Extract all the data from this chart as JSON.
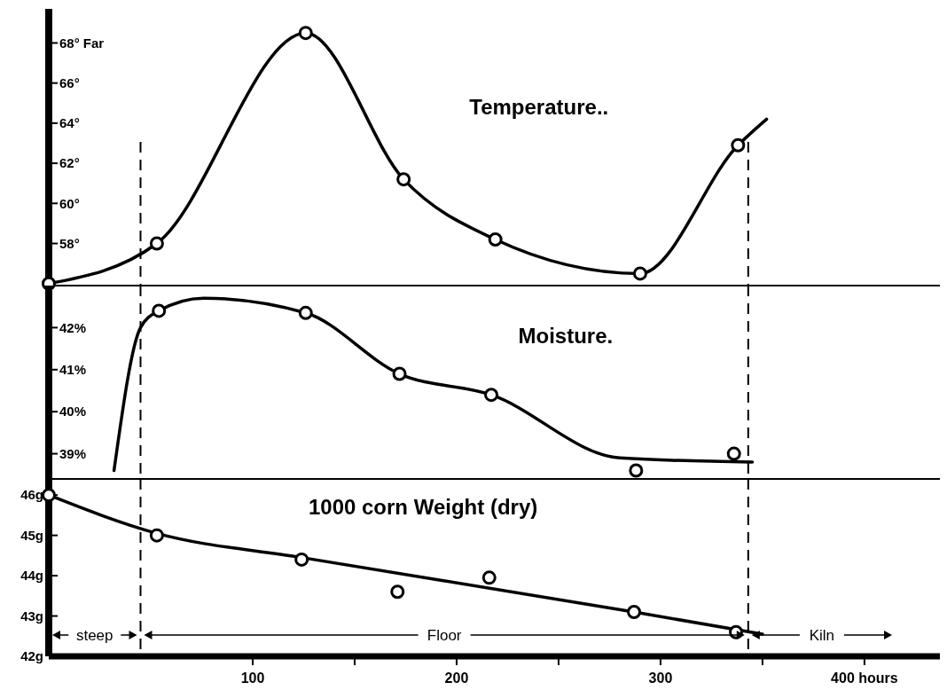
{
  "chart_data": [
    {
      "type": "line",
      "title": "Temperature..",
      "xlim": [
        0,
        437
      ],
      "ylim": [
        55.9,
        69.7
      ],
      "yticks": [
        {
          "value": 58,
          "label": "58°"
        },
        {
          "value": 60,
          "label": "60°"
        },
        {
          "value": 62,
          "label": "62°"
        },
        {
          "value": 64,
          "label": "64°"
        },
        {
          "value": 66,
          "label": "66°"
        },
        {
          "value": 68,
          "label": "68° Far"
        }
      ],
      "tick_labels": "y",
      "series": [
        {
          "type": "line",
          "color": "#000000",
          "marker": "none",
          "x": [
            0,
            53,
            126,
            174,
            219,
            290,
            338,
            352
          ],
          "values": [
            56,
            58,
            68.5,
            61.2,
            58.2,
            56.5,
            62.9,
            64.2
          ]
        },
        {
          "type": "scatter",
          "color": "#000000",
          "marker": "circle",
          "x": [
            0,
            53,
            126,
            174,
            219,
            290,
            338
          ],
          "values": [
            56,
            58,
            68.5,
            61.2,
            58.2,
            56.5,
            62.9
          ]
        }
      ],
      "ref_lines": [
        {
          "axis": "x",
          "value": 45,
          "line_style": "dashed",
          "color": "#000000"
        },
        {
          "axis": "x",
          "value": 343,
          "line_style": "dashed",
          "color": "#000000"
        }
      ]
    },
    {
      "type": "line",
      "title": "Moisture.",
      "xlim": [
        0,
        437
      ],
      "ylim": [
        38.4,
        43
      ],
      "yticks": [
        {
          "value": 39,
          "label": "39%"
        },
        {
          "value": 40,
          "label": "40%"
        },
        {
          "value": 41,
          "label": "41%"
        },
        {
          "value": 42,
          "label": "42%"
        }
      ],
      "tick_labels": "y",
      "series": [
        {
          "type": "line",
          "color": "#000000",
          "marker": "none",
          "x": [
            32,
            45,
            54,
            76,
            126,
            172,
            217,
            280,
            345
          ],
          "values": [
            38.6,
            42,
            42.4,
            42.7,
            42.35,
            40.9,
            40.4,
            38.9,
            38.8
          ]
        },
        {
          "type": "scatter",
          "color": "#000000",
          "marker": "circle",
          "x": [
            54,
            126,
            172,
            217,
            288,
            336
          ],
          "values": [
            42.4,
            42.35,
            40.9,
            40.4,
            38.6,
            39
          ]
        }
      ],
      "ref_lines": [
        {
          "axis": "x",
          "value": 45,
          "line_style": "dashed",
          "color": "#000000"
        },
        {
          "axis": "x",
          "value": 343,
          "line_style": "dashed",
          "color": "#000000"
        }
      ]
    },
    {
      "type": "line",
      "title": "1000 corn Weight (dry)",
      "xlim": [
        0,
        437
      ],
      "xticks": [
        100,
        {
          "value": 150,
          "label": null
        },
        200,
        {
          "value": 250,
          "label": null
        },
        300,
        {
          "value": 350,
          "label": null
        },
        {
          "value": 400,
          "label": "400 hours"
        }
      ],
      "ylim": [
        42,
        46.4
      ],
      "yticks": [
        {
          "value": 42,
          "label": "42g"
        },
        {
          "value": 43,
          "label": "43g"
        },
        {
          "value": 44,
          "label": "44g"
        },
        {
          "value": 45,
          "label": "45g"
        },
        {
          "value": 46,
          "label": "46g"
        }
      ],
      "series": [
        {
          "type": "line",
          "color": "#000000",
          "marker": "none",
          "x": [
            0,
            53,
            124,
            287,
            350
          ],
          "values": [
            46,
            45.05,
            44.45,
            43.1,
            42.55
          ]
        },
        {
          "type": "scatter",
          "color": "#000000",
          "marker": "circle",
          "x": [
            0,
            53,
            124,
            171,
            216,
            287,
            337
          ],
          "values": [
            46,
            45,
            44.4,
            43.6,
            43.95,
            43.1,
            42.6
          ]
        }
      ],
      "ref_lines": [
        {
          "axis": "x",
          "value": 45,
          "line_style": "dashed",
          "color": "#000000"
        },
        {
          "axis": "x",
          "value": 343,
          "line_style": "dashed",
          "color": "#000000"
        }
      ],
      "annotations": [
        "steep",
        "Floor",
        "Kiln"
      ]
    }
  ]
}
